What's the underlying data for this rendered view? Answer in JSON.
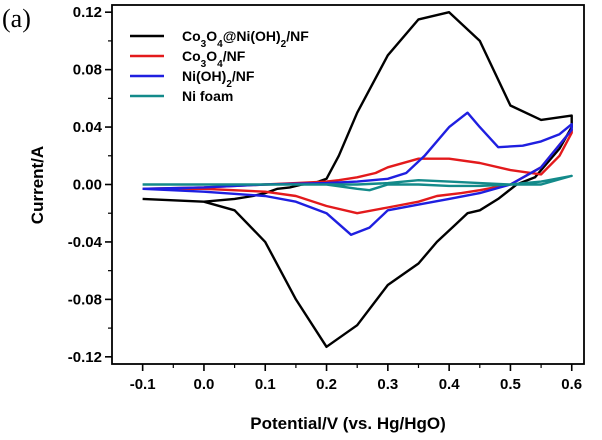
{
  "panel_label": "(a)",
  "chart_data": {
    "type": "line",
    "xlabel": "Potential/V (vs. Hg/HgO)",
    "ylabel": "Current/A",
    "xlim": [
      -0.15,
      0.62
    ],
    "ylim": [
      -0.125,
      0.125
    ],
    "x_ticks": [
      -0.1,
      0.0,
      0.1,
      0.2,
      0.3,
      0.4,
      0.5,
      0.6
    ],
    "x_tick_labels": [
      "-0.1",
      "0.0",
      "0.1",
      "0.2",
      "0.3",
      "0.4",
      "0.5",
      "0.6"
    ],
    "y_ticks": [
      -0.12,
      -0.08,
      -0.04,
      0.0,
      0.04,
      0.08,
      0.12
    ],
    "y_tick_labels": [
      "-0.12",
      "-0.08",
      "-0.04",
      "0.00",
      "0.04",
      "0.08",
      "0.12"
    ],
    "grid": false,
    "legend_position": "top-left",
    "series": [
      {
        "name": "Co3O4@Ni(OH)2/NF",
        "legend": {
          "base": "Co",
          "parts": [
            [
              "3",
              "sub"
            ],
            [
              "O",
              ""
            ],
            [
              "4",
              "sub"
            ],
            [
              "@Ni(OH)",
              ""
            ],
            [
              "2",
              "sub"
            ],
            [
              "/NF",
              ""
            ]
          ]
        },
        "color": "#000000",
        "x": [
          -0.1,
          0.0,
          0.05,
          0.1,
          0.15,
          0.2,
          0.25,
          0.3,
          0.35,
          0.38,
          0.41,
          0.43,
          0.45,
          0.48,
          0.51,
          0.54,
          0.56,
          0.58,
          0.6,
          0.6,
          0.55,
          0.5,
          0.45,
          0.4,
          0.35,
          0.3,
          0.25,
          0.22,
          0.2,
          0.18,
          0.16,
          0.14,
          0.12,
          0.1,
          0.08,
          0.05,
          0.0,
          -0.05,
          -0.1
        ],
        "y": [
          -0.01,
          -0.012,
          -0.018,
          -0.04,
          -0.08,
          -0.113,
          -0.098,
          -0.07,
          -0.055,
          -0.04,
          -0.028,
          -0.02,
          -0.018,
          -0.01,
          0.0,
          0.005,
          0.015,
          0.025,
          0.04,
          0.048,
          0.045,
          0.055,
          0.1,
          0.12,
          0.115,
          0.09,
          0.05,
          0.02,
          0.004,
          0.001,
          0.0,
          -0.002,
          -0.003,
          -0.006,
          -0.008,
          -0.01,
          -0.012,
          -0.011,
          -0.01
        ]
      },
      {
        "name": "Co3O4/NF",
        "legend": {
          "base": "Co",
          "parts": [
            [
              "3",
              "sub"
            ],
            [
              "O",
              ""
            ],
            [
              "4",
              "sub"
            ],
            [
              "/NF",
              ""
            ]
          ]
        },
        "color": "#e31a1c",
        "x": [
          -0.1,
          0.0,
          0.1,
          0.15,
          0.2,
          0.22,
          0.25,
          0.28,
          0.3,
          0.35,
          0.4,
          0.45,
          0.5,
          0.55,
          0.58,
          0.6,
          0.6,
          0.55,
          0.5,
          0.45,
          0.42,
          0.38,
          0.35,
          0.3,
          0.25,
          0.2,
          0.15,
          0.1,
          0.0,
          -0.1
        ],
        "y": [
          -0.003,
          -0.002,
          0.0,
          0.001,
          0.002,
          0.003,
          0.005,
          0.008,
          0.012,
          0.018,
          0.018,
          0.015,
          0.01,
          0.007,
          0.02,
          0.036,
          0.038,
          0.012,
          0.0,
          -0.004,
          -0.006,
          -0.008,
          -0.012,
          -0.016,
          -0.02,
          -0.015,
          -0.008,
          -0.005,
          -0.003,
          -0.003
        ]
      },
      {
        "name": "Ni(OH)2/NF",
        "legend": {
          "base": "Ni(OH)",
          "parts": [
            [
              "2",
              "sub"
            ],
            [
              "/NF",
              ""
            ]
          ]
        },
        "color": "#1f1fe0",
        "x": [
          -0.1,
          0.0,
          0.1,
          0.2,
          0.25,
          0.3,
          0.33,
          0.36,
          0.4,
          0.43,
          0.45,
          0.48,
          0.52,
          0.55,
          0.58,
          0.6,
          0.6,
          0.55,
          0.5,
          0.45,
          0.4,
          0.35,
          0.3,
          0.27,
          0.24,
          0.2,
          0.15,
          0.1,
          0.0,
          -0.1
        ],
        "y": [
          -0.003,
          -0.002,
          0.0,
          0.001,
          0.002,
          0.004,
          0.008,
          0.02,
          0.04,
          0.05,
          0.04,
          0.026,
          0.027,
          0.03,
          0.035,
          0.042,
          0.038,
          0.012,
          0.0,
          -0.006,
          -0.01,
          -0.014,
          -0.018,
          -0.03,
          -0.035,
          -0.02,
          -0.012,
          -0.008,
          -0.005,
          -0.003
        ]
      },
      {
        "name": "Ni foam",
        "legend": {
          "base": "Ni foam",
          "parts": []
        },
        "color": "#138a8a",
        "x": [
          -0.1,
          0.0,
          0.1,
          0.2,
          0.25,
          0.3,
          0.35,
          0.4,
          0.45,
          0.5,
          0.55,
          0.6,
          0.6,
          0.55,
          0.5,
          0.45,
          0.4,
          0.35,
          0.3,
          0.27,
          0.25,
          0.2,
          0.1,
          0.0,
          -0.1
        ],
        "y": [
          0.0,
          0.0,
          0.0,
          0.0,
          0.0,
          0.001,
          0.003,
          0.002,
          0.001,
          0.0,
          0.0,
          0.006,
          0.006,
          0.002,
          0.0,
          -0.001,
          -0.001,
          0.0,
          0.0,
          -0.004,
          -0.003,
          0.0,
          0.0,
          0.0,
          0.0
        ]
      }
    ]
  }
}
